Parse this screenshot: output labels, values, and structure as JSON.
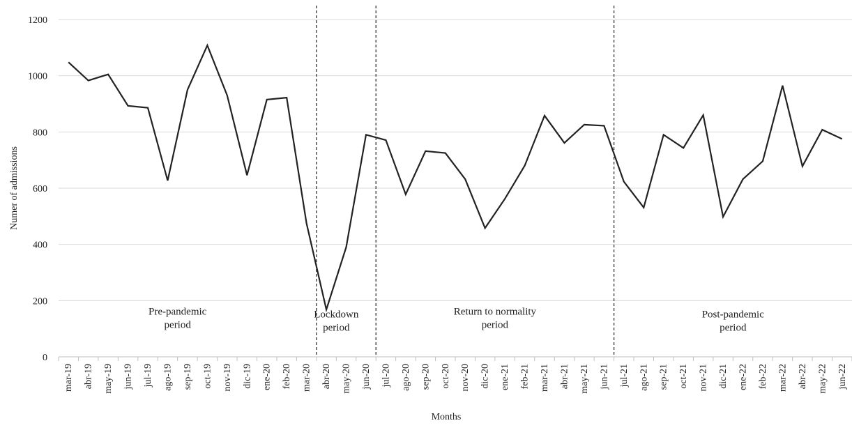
{
  "chart_data": {
    "type": "line",
    "title": "",
    "xlabel": "Months",
    "ylabel": "Numer of admissions",
    "ylim": [
      0,
      1200
    ],
    "yticks": [
      0,
      200,
      400,
      600,
      800,
      1000,
      1200
    ],
    "grid": "horizontal",
    "categories": [
      "mar-19",
      "abr-19",
      "may-19",
      "jun-19",
      "jul-19",
      "ago-19",
      "sep-19",
      "oct-19",
      "nov-19",
      "dic-19",
      "ene-20",
      "feb-20",
      "mar-20",
      "abr-20",
      "may-20",
      "jun-20",
      "jul-20",
      "ago-20",
      "sep-20",
      "oct-20",
      "nov-20",
      "dic-20",
      "ene-21",
      "feb-21",
      "mar-21",
      "abr-21",
      "may-21",
      "jun-21",
      "jul-21",
      "ago-21",
      "sep-21",
      "oct-21",
      "nov-21",
      "dic-21",
      "ene-22",
      "feb-22",
      "mar-22",
      "abr-22",
      "may-22",
      "jun-22"
    ],
    "series": [
      {
        "values": [
          1048,
          983,
          1005,
          893,
          886,
          627,
          950,
          1108,
          930,
          646,
          915,
          922,
          475,
          168,
          390,
          790,
          771,
          578,
          732,
          725,
          632,
          458,
          562,
          680,
          858,
          761,
          826,
          822,
          623,
          531,
          790,
          743,
          860,
          498,
          632,
          696,
          965,
          678,
          808,
          775
        ],
        "color": "#222222"
      }
    ],
    "period_dividers": [
      "mar-20",
      "jun-20",
      "jun-21"
    ],
    "annotations": [
      {
        "id": "pre-pandemic",
        "lines": [
          "Pre-pandemic",
          "period"
        ],
        "index": 5.5,
        "y": 150
      },
      {
        "id": "lockdown",
        "lines": [
          "Lockdown",
          "period"
        ],
        "index": 13.5,
        "y": 140
      },
      {
        "id": "return-normality",
        "lines": [
          "Return to normality",
          "period"
        ],
        "index": 21.5,
        "y": 150
      },
      {
        "id": "post-pandemic",
        "lines": [
          "Post-pandemic",
          "period"
        ],
        "index": 33.5,
        "y": 140
      }
    ],
    "colors": {
      "line": "#222222",
      "grid": "#d9d9d9",
      "axis": "#bfbfbf",
      "divider": "#222222",
      "text": "#222222"
    }
  }
}
